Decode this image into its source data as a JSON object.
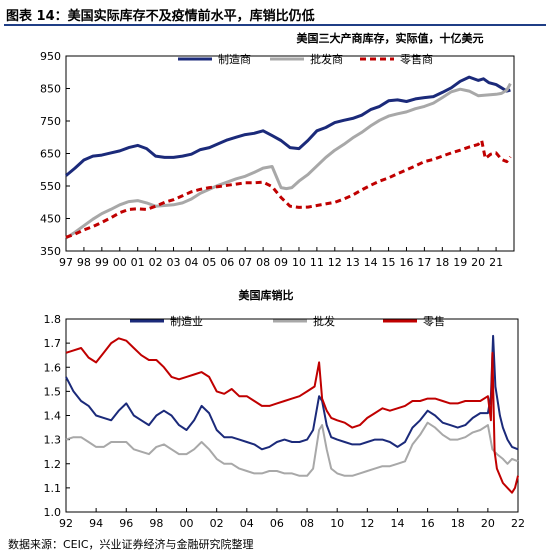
{
  "figure": {
    "title": "图表 14：美国实际库存不及疫情前水平，库销比仍低",
    "source": "数据来源：CEIC，兴业证券经济与金融研究院整理"
  },
  "colors": {
    "navy": "#1b2a7a",
    "gray": "#a8a8a8",
    "red": "#c00000",
    "rule": "#1f3e86"
  },
  "chart_data": [
    {
      "type": "line",
      "title": "美国三大产商库存，实际值，十亿美元",
      "x_tick_labels": [
        "97",
        "98",
        "99",
        "00",
        "01",
        "02",
        "03",
        "04",
        "05",
        "06",
        "07",
        "08",
        "09",
        "10",
        "11",
        "12",
        "13",
        "14",
        "15",
        "16",
        "17",
        "18",
        "19",
        "20",
        "21"
      ],
      "xlim": [
        1997.0,
        2022.0
      ],
      "ylim": [
        350,
        950
      ],
      "y_ticks": [
        350,
        450,
        550,
        650,
        750,
        850,
        950
      ],
      "legend_position": "top",
      "series": [
        {
          "name": "制造商",
          "color": "#1b2a7a",
          "style": "solid",
          "x": [
            1997.0,
            1997.5,
            1998.0,
            1998.5,
            1999.0,
            1999.5,
            2000.0,
            2000.5,
            2001.0,
            2001.5,
            2002.0,
            2002.5,
            2003.0,
            2003.5,
            2004.0,
            2004.5,
            2005.0,
            2005.5,
            2006.0,
            2006.5,
            2007.0,
            2007.5,
            2008.0,
            2008.5,
            2009.0,
            2009.5,
            2010.0,
            2010.5,
            2011.0,
            2011.5,
            2012.0,
            2012.5,
            2013.0,
            2013.5,
            2014.0,
            2014.5,
            2015.0,
            2015.5,
            2016.0,
            2016.5,
            2017.0,
            2017.5,
            2018.0,
            2018.5,
            2019.0,
            2019.5,
            2020.0,
            2020.3,
            2020.6,
            2021.0,
            2021.3,
            2021.6,
            2021.8
          ],
          "values": [
            582,
            605,
            630,
            642,
            645,
            652,
            658,
            668,
            675,
            665,
            642,
            638,
            638,
            642,
            648,
            662,
            668,
            680,
            692,
            700,
            708,
            712,
            720,
            705,
            690,
            668,
            665,
            690,
            720,
            730,
            745,
            752,
            758,
            768,
            785,
            795,
            812,
            815,
            810,
            818,
            822,
            825,
            838,
            852,
            872,
            885,
            875,
            880,
            868,
            862,
            852,
            842,
            845
          ]
        },
        {
          "name": "批发商",
          "color": "#a8a8a8",
          "style": "solid",
          "x": [
            1997.0,
            1997.5,
            1998.0,
            1998.5,
            1999.0,
            1999.5,
            2000.0,
            2000.5,
            2001.0,
            2001.5,
            2002.0,
            2002.5,
            2003.0,
            2003.5,
            2004.0,
            2004.5,
            2005.0,
            2005.5,
            2006.0,
            2006.5,
            2007.0,
            2007.5,
            2008.0,
            2008.5,
            2009.0,
            2009.3,
            2009.6,
            2010.0,
            2010.5,
            2011.0,
            2011.5,
            2012.0,
            2012.5,
            2013.0,
            2013.5,
            2014.0,
            2014.5,
            2015.0,
            2015.5,
            2016.0,
            2016.5,
            2017.0,
            2017.5,
            2018.0,
            2018.5,
            2019.0,
            2019.5,
            2020.0,
            2020.5,
            2021.0,
            2021.3,
            2021.6,
            2021.8
          ],
          "values": [
            390,
            408,
            428,
            448,
            465,
            478,
            492,
            502,
            505,
            498,
            488,
            490,
            492,
            498,
            510,
            528,
            540,
            552,
            562,
            572,
            580,
            592,
            605,
            610,
            545,
            542,
            545,
            565,
            585,
            612,
            638,
            660,
            678,
            698,
            715,
            735,
            752,
            765,
            772,
            778,
            788,
            795,
            805,
            822,
            840,
            848,
            842,
            828,
            830,
            832,
            835,
            845,
            865
          ]
        },
        {
          "name": "零售商",
          "color": "#c00000",
          "style": "dashed",
          "x": [
            1997.0,
            1997.5,
            1998.0,
            1998.5,
            1999.0,
            1999.5,
            2000.0,
            2000.5,
            2001.0,
            2001.5,
            2002.0,
            2002.5,
            2003.0,
            2003.5,
            2004.0,
            2004.5,
            2005.0,
            2005.5,
            2006.0,
            2006.5,
            2007.0,
            2007.5,
            2008.0,
            2008.5,
            2009.0,
            2009.5,
            2010.0,
            2010.5,
            2011.0,
            2011.5,
            2012.0,
            2012.5,
            2013.0,
            2013.5,
            2014.0,
            2014.5,
            2015.0,
            2015.5,
            2016.0,
            2016.5,
            2017.0,
            2017.5,
            2018.0,
            2018.5,
            2019.0,
            2019.5,
            2020.0,
            2020.2,
            2020.4,
            2020.7,
            2021.0,
            2021.3,
            2021.6,
            2021.8
          ],
          "values": [
            392,
            402,
            415,
            425,
            438,
            452,
            468,
            478,
            480,
            478,
            488,
            500,
            508,
            520,
            532,
            540,
            545,
            548,
            552,
            556,
            560,
            560,
            562,
            548,
            515,
            488,
            484,
            485,
            490,
            495,
            500,
            510,
            522,
            538,
            552,
            565,
            575,
            588,
            600,
            612,
            625,
            632,
            642,
            652,
            660,
            670,
            678,
            690,
            635,
            648,
            652,
            632,
            625,
            640
          ]
        }
      ]
    },
    {
      "type": "line",
      "title": "美国库销比",
      "x_tick_labels": [
        "92",
        "94",
        "96",
        "98",
        "00",
        "02",
        "04",
        "06",
        "08",
        "10",
        "12",
        "14",
        "16",
        "18",
        "20",
        "22"
      ],
      "xlim": [
        1992.0,
        2022.0
      ],
      "ylim": [
        1.0,
        1.8
      ],
      "y_ticks": [
        1.0,
        1.1,
        1.2,
        1.3,
        1.4,
        1.5,
        1.6,
        1.7,
        1.8
      ],
      "legend_position": "top",
      "series": [
        {
          "name": "制造业",
          "color": "#1b2a7a",
          "style": "solid",
          "x": [
            1992.0,
            1992.5,
            1993.0,
            1993.5,
            1994.0,
            1994.5,
            1995.0,
            1995.5,
            1996.0,
            1996.5,
            1997.0,
            1997.5,
            1998.0,
            1998.5,
            1999.0,
            1999.5,
            2000.0,
            2000.5,
            2001.0,
            2001.5,
            2002.0,
            2002.5,
            2003.0,
            2003.5,
            2004.0,
            2004.5,
            2005.0,
            2005.5,
            2006.0,
            2006.5,
            2007.0,
            2007.5,
            2008.0,
            2008.4,
            2008.8,
            2009.0,
            2009.3,
            2009.6,
            2010.0,
            2010.5,
            2011.0,
            2011.5,
            2012.0,
            2012.5,
            2013.0,
            2013.5,
            2014.0,
            2014.5,
            2015.0,
            2015.5,
            2016.0,
            2016.5,
            2017.0,
            2017.5,
            2018.0,
            2018.5,
            2019.0,
            2019.5,
            2020.0,
            2020.2,
            2020.35,
            2020.5,
            2020.8,
            2021.0,
            2021.3,
            2021.6,
            2022.0
          ],
          "values": [
            1.56,
            1.5,
            1.46,
            1.44,
            1.4,
            1.39,
            1.38,
            1.42,
            1.45,
            1.4,
            1.38,
            1.36,
            1.4,
            1.42,
            1.4,
            1.36,
            1.34,
            1.38,
            1.44,
            1.41,
            1.34,
            1.31,
            1.31,
            1.3,
            1.29,
            1.28,
            1.26,
            1.27,
            1.29,
            1.3,
            1.29,
            1.29,
            1.3,
            1.34,
            1.48,
            1.46,
            1.36,
            1.31,
            1.3,
            1.29,
            1.28,
            1.28,
            1.29,
            1.3,
            1.3,
            1.29,
            1.27,
            1.29,
            1.35,
            1.38,
            1.42,
            1.4,
            1.37,
            1.36,
            1.35,
            1.36,
            1.39,
            1.41,
            1.41,
            1.48,
            1.73,
            1.52,
            1.4,
            1.35,
            1.3,
            1.27,
            1.26
          ]
        },
        {
          "name": "批发",
          "color": "#a8a8a8",
          "style": "solid",
          "x": [
            1992.0,
            1992.5,
            1993.0,
            1993.5,
            1994.0,
            1994.5,
            1995.0,
            1995.5,
            1996.0,
            1996.5,
            1997.0,
            1997.5,
            1998.0,
            1998.5,
            1999.0,
            1999.5,
            2000.0,
            2000.5,
            2001.0,
            2001.5,
            2002.0,
            2002.5,
            2003.0,
            2003.5,
            2004.0,
            2004.5,
            2005.0,
            2005.5,
            2006.0,
            2006.5,
            2007.0,
            2007.5,
            2008.0,
            2008.4,
            2008.8,
            2009.0,
            2009.3,
            2009.6,
            2010.0,
            2010.5,
            2011.0,
            2011.5,
            2012.0,
            2012.5,
            2013.0,
            2013.5,
            2014.0,
            2014.5,
            2015.0,
            2015.5,
            2016.0,
            2016.5,
            2017.0,
            2017.5,
            2018.0,
            2018.5,
            2019.0,
            2019.5,
            2020.0,
            2020.3,
            2020.6,
            2021.0,
            2021.3,
            2021.6,
            2022.0
          ],
          "values": [
            1.3,
            1.31,
            1.31,
            1.29,
            1.27,
            1.27,
            1.29,
            1.29,
            1.29,
            1.26,
            1.25,
            1.24,
            1.27,
            1.28,
            1.26,
            1.24,
            1.24,
            1.26,
            1.29,
            1.26,
            1.22,
            1.2,
            1.2,
            1.18,
            1.17,
            1.16,
            1.16,
            1.17,
            1.17,
            1.16,
            1.16,
            1.15,
            1.15,
            1.18,
            1.34,
            1.36,
            1.26,
            1.18,
            1.16,
            1.15,
            1.15,
            1.16,
            1.17,
            1.18,
            1.19,
            1.19,
            1.2,
            1.21,
            1.28,
            1.32,
            1.37,
            1.35,
            1.32,
            1.3,
            1.3,
            1.31,
            1.33,
            1.34,
            1.36,
            1.26,
            1.24,
            1.22,
            1.2,
            1.22,
            1.21
          ]
        },
        {
          "name": "零售",
          "color": "#c00000",
          "style": "solid",
          "x": [
            1992.0,
            1992.5,
            1993.0,
            1993.5,
            1994.0,
            1994.5,
            1995.0,
            1995.5,
            1996.0,
            1996.5,
            1997.0,
            1997.5,
            1998.0,
            1998.5,
            1999.0,
            1999.5,
            2000.0,
            2000.5,
            2001.0,
            2001.5,
            2002.0,
            2002.5,
            2003.0,
            2003.5,
            2004.0,
            2004.5,
            2005.0,
            2005.5,
            2006.0,
            2006.5,
            2007.0,
            2007.5,
            2008.0,
            2008.5,
            2008.8,
            2009.0,
            2009.3,
            2009.6,
            2010.0,
            2010.5,
            2011.0,
            2011.5,
            2012.0,
            2012.5,
            2013.0,
            2013.5,
            2014.0,
            2014.5,
            2015.0,
            2015.5,
            2016.0,
            2016.5,
            2017.0,
            2017.5,
            2018.0,
            2018.5,
            2019.0,
            2019.5,
            2020.0,
            2020.2,
            2020.3,
            2020.45,
            2020.6,
            2021.0,
            2021.3,
            2021.6,
            2021.8,
            2022.0
          ],
          "values": [
            1.66,
            1.67,
            1.68,
            1.64,
            1.62,
            1.66,
            1.7,
            1.72,
            1.71,
            1.68,
            1.65,
            1.63,
            1.63,
            1.6,
            1.56,
            1.55,
            1.56,
            1.57,
            1.58,
            1.56,
            1.5,
            1.49,
            1.51,
            1.48,
            1.48,
            1.46,
            1.44,
            1.44,
            1.45,
            1.46,
            1.47,
            1.48,
            1.5,
            1.52,
            1.62,
            1.47,
            1.42,
            1.39,
            1.38,
            1.37,
            1.35,
            1.36,
            1.39,
            1.41,
            1.43,
            1.42,
            1.43,
            1.44,
            1.46,
            1.46,
            1.47,
            1.47,
            1.46,
            1.45,
            1.45,
            1.46,
            1.46,
            1.46,
            1.48,
            1.38,
            1.66,
            1.25,
            1.18,
            1.12,
            1.1,
            1.08,
            1.1,
            1.15
          ]
        }
      ]
    }
  ]
}
